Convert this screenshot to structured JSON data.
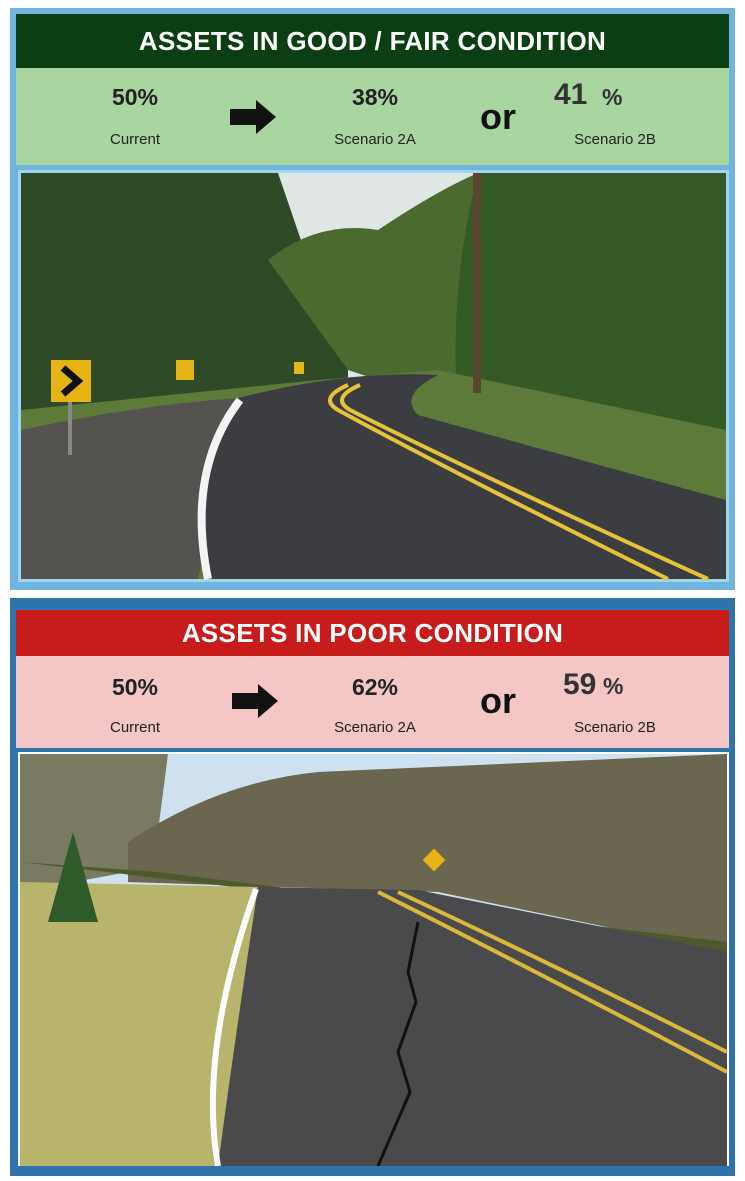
{
  "panels": [
    {
      "title": "ASSETS IN GOOD / FAIR CONDITION",
      "current": {
        "value": "50%",
        "label": "Current"
      },
      "scenario_2a": {
        "value": "38%",
        "label": "Scenario 2A"
      },
      "connector": "or",
      "scenario_2b": {
        "value": "41",
        "unit": "%",
        "label": "Scenario 2B"
      }
    },
    {
      "title": "ASSETS IN POOR CONDITION",
      "current": {
        "value": "50%",
        "label": "Current"
      },
      "scenario_2a": {
        "value": "62%",
        "label": "Scenario 2A"
      },
      "connector": "or",
      "scenario_2b": {
        "value": "59",
        "unit": "%",
        "label": "Scenario 2B"
      }
    }
  ]
}
